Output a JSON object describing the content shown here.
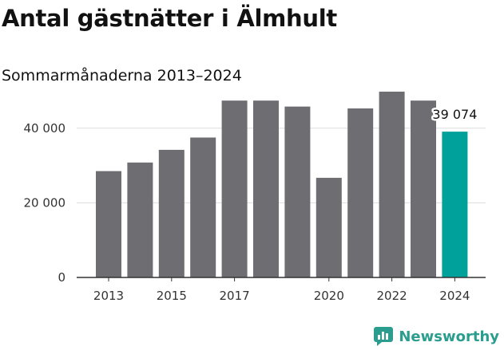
{
  "title": "Antal gästnätter i Älmhult",
  "subtitle": "Sommarmånaderna 2013–2024",
  "brand": {
    "name": "Newsworthy",
    "color": "#2a9d8f"
  },
  "colors": {
    "bar": "#6e6d72",
    "highlight": "#00a19a",
    "grid": "#dddddd",
    "axis": "#333333"
  },
  "chart_data": {
    "type": "bar",
    "title": "Antal gästnätter i Älmhult",
    "subtitle": "Sommarmånaderna 2013–2024",
    "categories": [
      "2013",
      "2014",
      "2015",
      "2016",
      "2017",
      "2018",
      "2019",
      "2020",
      "2021",
      "2022",
      "2023",
      "2024"
    ],
    "values": [
      28500,
      30800,
      34200,
      37500,
      47400,
      47400,
      45800,
      26700,
      45300,
      49800,
      47400,
      39074
    ],
    "highlight_index": 11,
    "x_tick_labels": [
      "2013",
      "2015",
      "2017",
      "2020",
      "2022",
      "2024"
    ],
    "y_ticks": [
      0,
      20000,
      40000
    ],
    "y_tick_labels": [
      "0",
      "20 000",
      "40 000"
    ],
    "ylim": [
      0,
      50000
    ],
    "data_labels": [
      {
        "index": 11,
        "text": "39 074"
      }
    ],
    "grid": true,
    "xlabel": "",
    "ylabel": ""
  }
}
